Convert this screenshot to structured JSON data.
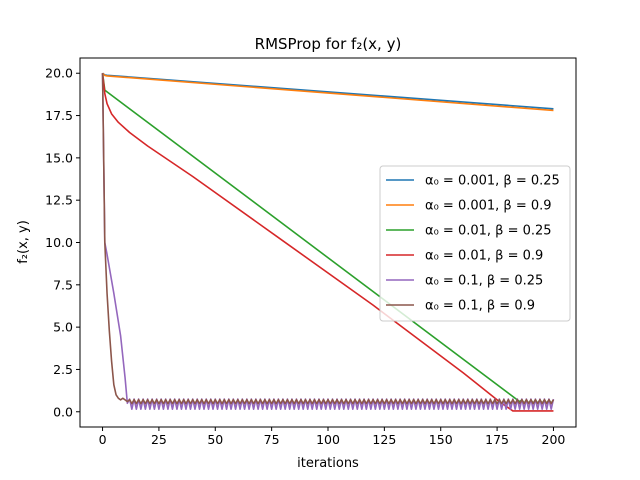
{
  "chart_data": {
    "type": "line",
    "title": "RMSProp for f₂(x, y)",
    "xlabel": "iterations",
    "ylabel": "f₂(x, y)",
    "xlim": [
      -10,
      210
    ],
    "ylim": [
      -0.9,
      20.9
    ],
    "xticks": [
      0,
      25,
      50,
      75,
      100,
      125,
      150,
      175,
      200
    ],
    "yticks": [
      0.0,
      2.5,
      5.0,
      7.5,
      10.0,
      12.5,
      15.0,
      17.5,
      20.0
    ],
    "xtick_labels": [
      "0",
      "25",
      "50",
      "75",
      "100",
      "125",
      "150",
      "175",
      "200"
    ],
    "ytick_labels": [
      "0.0",
      "2.5",
      "5.0",
      "7.5",
      "10.0",
      "12.5",
      "15.0",
      "17.5",
      "20.0"
    ],
    "grid": false,
    "legend_position": "center-right",
    "series": [
      {
        "name": "α₀ = 0.001, β = 0.25",
        "color": "#1f77b4",
        "points": [
          [
            0,
            20.0
          ],
          [
            1,
            19.9
          ],
          [
            2,
            19.88
          ],
          [
            200,
            17.9
          ]
        ]
      },
      {
        "name": "α₀ = 0.001, β = 0.9",
        "color": "#ff7f0e",
        "points": [
          [
            0,
            20.0
          ],
          [
            1,
            19.87
          ],
          [
            2,
            19.84
          ],
          [
            200,
            17.8
          ]
        ]
      },
      {
        "name": "α₀ = 0.01, β = 0.25",
        "color": "#2ca02c",
        "points": [
          [
            0,
            20.0
          ],
          [
            1,
            19.0
          ],
          [
            2,
            18.9
          ],
          [
            185,
            0.6
          ]
        ],
        "tail": {
          "start": 185,
          "end": 200,
          "center": 0.6,
          "amplitude": 0.1
        }
      },
      {
        "name": "α₀ = 0.01, β = 0.9",
        "color": "#d62728",
        "points": [
          [
            0,
            20.0
          ],
          [
            1,
            18.8
          ],
          [
            2,
            18.2
          ],
          [
            4,
            17.6
          ],
          [
            7,
            17.1
          ],
          [
            12,
            16.5
          ],
          [
            20,
            15.7
          ],
          [
            40,
            13.9
          ],
          [
            80,
            10.1
          ],
          [
            120,
            6.3
          ],
          [
            160,
            2.3
          ],
          [
            176,
            0.6
          ],
          [
            182,
            0.05
          ],
          [
            200,
            0.05
          ]
        ]
      },
      {
        "name": "α₀ = 0.1, β = 0.25",
        "color": "#9467bd",
        "points": [
          [
            0,
            20.0
          ],
          [
            1,
            10.0
          ],
          [
            2,
            9.3
          ],
          [
            5,
            7.0
          ],
          [
            8,
            4.5
          ],
          [
            10,
            2.0
          ],
          [
            11,
            0.5
          ]
        ],
        "tail": {
          "start": 11,
          "end": 200,
          "center": 0.45,
          "amplitude": 0.3
        }
      },
      {
        "name": "α₀ = 0.1, β = 0.9",
        "color": "#8c564b",
        "points": [
          [
            0,
            20.0
          ],
          [
            1,
            10.0
          ],
          [
            2,
            7.0
          ],
          [
            3,
            4.8
          ],
          [
            4,
            3.0
          ],
          [
            5,
            1.6
          ],
          [
            6,
            1.0
          ],
          [
            7,
            0.8
          ],
          [
            8,
            0.7
          ],
          [
            9,
            0.8
          ],
          [
            10,
            0.7
          ],
          [
            11,
            0.6
          ]
        ],
        "tail": {
          "start": 11,
          "end": 200,
          "center": 0.6,
          "amplitude": 0.12
        }
      }
    ]
  }
}
